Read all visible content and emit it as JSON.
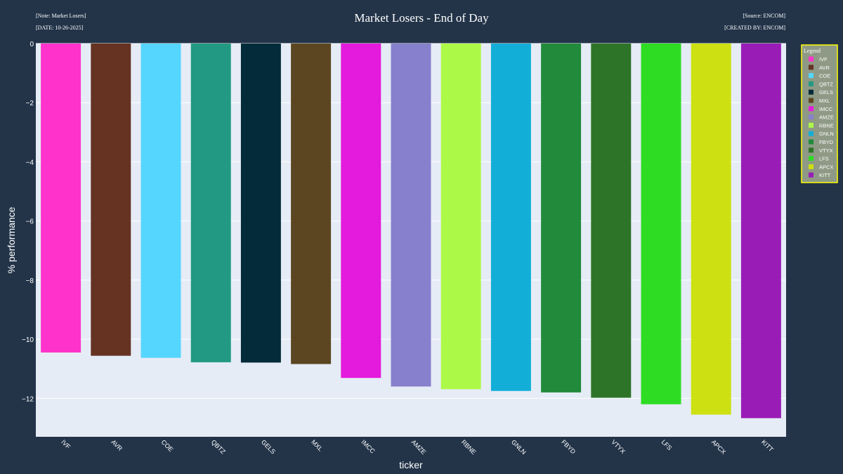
{
  "header": {
    "note": "[Note: Market Losers]",
    "date": "[DATE: 10-26-2025]",
    "source": "[Source: ENCOM]",
    "created_by": "[CREATED BY: ENCOM]"
  },
  "colors": {
    "page_background": "#233449",
    "plot_background": "#e5ecf6",
    "gridline": "#ffffff",
    "text": "#ffffff",
    "legend_background": "#8e9a85",
    "legend_border": "#ffff00"
  },
  "chart_data": {
    "type": "bar",
    "title": "Market Losers - End of Day",
    "xlabel": "ticker",
    "ylabel": "% performance",
    "ylim": [
      -13.3,
      0
    ],
    "yticks": [
      0,
      -2,
      -4,
      -6,
      -8,
      -10,
      -12
    ],
    "ytick_labels": [
      "0",
      "−2",
      "−4",
      "−6",
      "−8",
      "−10",
      "−12"
    ],
    "grid": true,
    "legend_title": "Legend",
    "legend_position": "right",
    "categories": [
      "IVF",
      "AVR",
      "COE",
      "QBTZ",
      "GELS",
      "MXL",
      "IMCC",
      "AMZE",
      "RBNE",
      "GNLN",
      "FBYD",
      "VTYX",
      "LFS",
      "APCX",
      "KITT"
    ],
    "values": [
      -10.45,
      -10.56,
      -10.63,
      -10.78,
      -10.79,
      -10.84,
      -11.31,
      -11.6,
      -11.69,
      -11.75,
      -11.8,
      -11.98,
      -12.2,
      -12.55,
      -12.67
    ],
    "bar_colors": [
      "#ff33cc",
      "#663322",
      "#55d6ff",
      "#229982",
      "#042b3a",
      "#5c4621",
      "#e41adc",
      "#8780cc",
      "#adf948",
      "#13aed8",
      "#218a3b",
      "#2d7428",
      "#2edc23",
      "#cde012",
      "#9a1cb6"
    ]
  }
}
